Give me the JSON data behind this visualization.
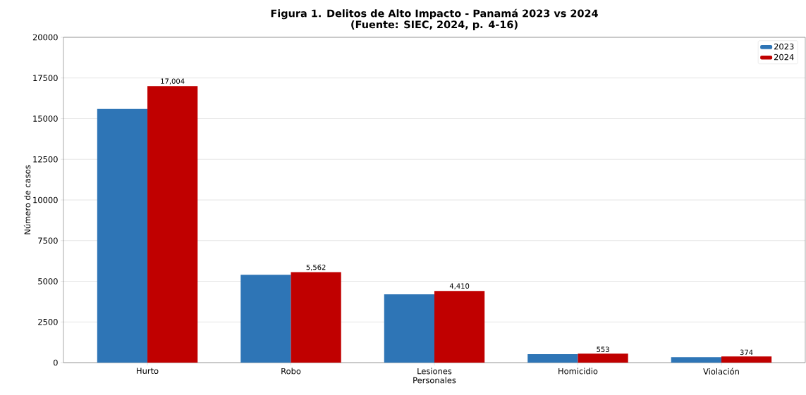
{
  "chart_data": {
    "type": "bar",
    "title": "Figura 1. Delitos de Alto Impacto - Panamá 2023 vs 2024",
    "subtitle": "(Fuente: SIEC, 2024, p. 4-16)",
    "ylabel": "Número de casos",
    "categories": [
      "Hurto",
      "Robo",
      "Lesiones Personales",
      "Homicidio",
      "Violación"
    ],
    "series": [
      {
        "name": "2023",
        "color": "#2e75b6",
        "values": [
          15600,
          5400,
          4200,
          520,
          340
        ]
      },
      {
        "name": "2024",
        "color": "#c00000",
        "values": [
          17004,
          5562,
          4410,
          553,
          374
        ],
        "value_labels": [
          "17,004",
          "5,562",
          "4,410",
          "553",
          "374"
        ]
      }
    ],
    "ylim": [
      0,
      20000
    ],
    "yticks": [
      0,
      2500,
      5000,
      7500,
      10000,
      12500,
      15000,
      17500,
      20000
    ],
    "grid": "y",
    "legend": "top right"
  }
}
